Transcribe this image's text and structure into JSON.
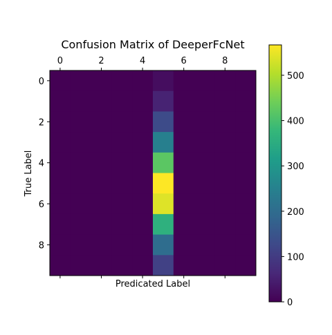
{
  "chart_data": {
    "type": "heatmap",
    "title": "Confusion Matrix of DeeperFcNet",
    "xlabel": "Predicated Label",
    "ylabel": "True Label",
    "x_ticks": [
      "0",
      "2",
      "4",
      "6",
      "8"
    ],
    "y_ticks": [
      "0",
      "2",
      "4",
      "6",
      "8"
    ],
    "x_tick_values": [
      0,
      2,
      4,
      6,
      8
    ],
    "y_tick_values": [
      0,
      2,
      4,
      6,
      8
    ],
    "rows": 10,
    "cols": 10,
    "matrix": [
      [
        0,
        0,
        0,
        0,
        0,
        20,
        0,
        0,
        0,
        0
      ],
      [
        0,
        0,
        0,
        0,
        0,
        55,
        0,
        0,
        0,
        0
      ],
      [
        0,
        0,
        0,
        0,
        0,
        130,
        0,
        0,
        0,
        0
      ],
      [
        0,
        0,
        0,
        0,
        0,
        245,
        0,
        0,
        0,
        0
      ],
      [
        0,
        0,
        0,
        0,
        0,
        420,
        0,
        0,
        0,
        0
      ],
      [
        0,
        0,
        0,
        0,
        0,
        567,
        0,
        0,
        0,
        0
      ],
      [
        0,
        0,
        0,
        0,
        0,
        540,
        0,
        0,
        0,
        0
      ],
      [
        0,
        0,
        0,
        0,
        0,
        360,
        0,
        0,
        0,
        0
      ],
      [
        0,
        0,
        0,
        0,
        0,
        200,
        0,
        0,
        0,
        0
      ],
      [
        0,
        0,
        0,
        0,
        0,
        110,
        0,
        0,
        0,
        0
      ]
    ],
    "colormap": "viridis",
    "color_range": [
      0,
      567
    ],
    "colorbar_ticks": [
      "0",
      "100",
      "200",
      "300",
      "400",
      "500"
    ],
    "colorbar_tick_values": [
      0,
      100,
      200,
      300,
      400,
      500
    ],
    "colorbar_stops": [
      "#440154",
      "#482878",
      "#3e4989",
      "#31688e",
      "#26828e",
      "#1f9e89",
      "#35b779",
      "#6ece58",
      "#b5de2b",
      "#fde725"
    ]
  }
}
